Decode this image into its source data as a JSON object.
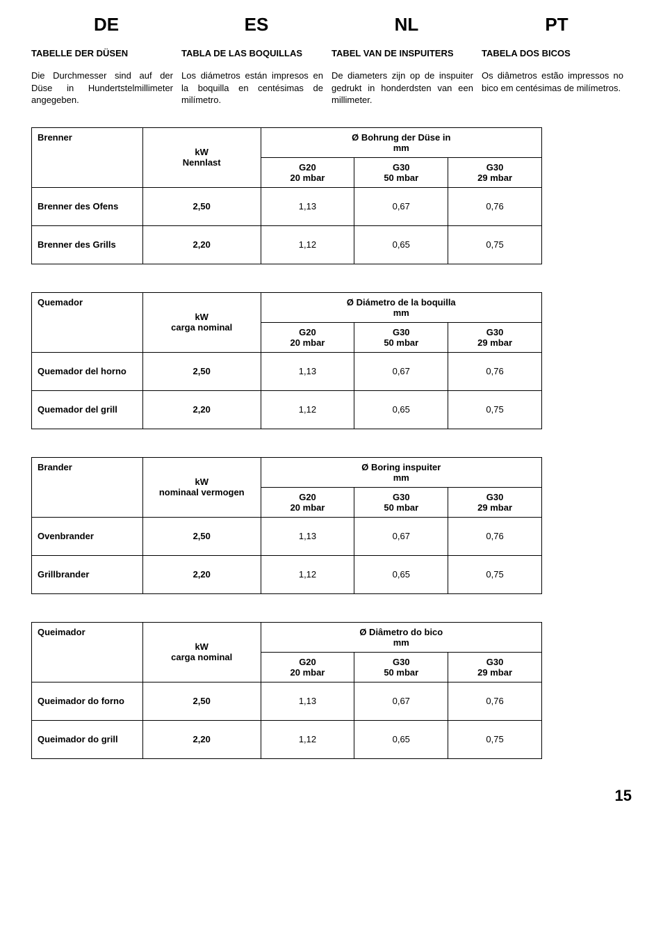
{
  "langs": {
    "de": "DE",
    "es": "ES",
    "nl": "NL",
    "pt": "PT"
  },
  "section_titles": {
    "de": "TABELLE DER DÜSEN",
    "es": "TABLA DE LAS BOQUILLAS",
    "nl": "TABEL VAN DE INSPUITERS",
    "pt": "TABELA DOS BICOS"
  },
  "descriptions": {
    "de": "Die Durchmesser sind auf der Düse in Hundertstelmillimeter angegeben.",
    "es": "Los diámetros están impresos en la boquilla en centésimas de milímetro.",
    "nl": "De diameters zijn op de inspuiter gedrukt in honderdsten van een millimeter.",
    "pt": "Os diâmetros estão impressos no bico em centésimas de milímetros."
  },
  "gas_headers": {
    "g20_top": "G20",
    "g20_bot": "20 mbar",
    "g30a_top": "G30",
    "g30a_bot": "50 mbar",
    "g30b_top": "G30",
    "g30b_bot": "29 mbar"
  },
  "tables": [
    {
      "col1": "Brenner",
      "kw_top": "kW",
      "kw_bot": "Nennlast",
      "diam_top": "Ø Bohrung der Düse in",
      "diam_bot": "mm",
      "rows": [
        {
          "label": "Brenner des Ofens",
          "kw": "2,50",
          "g20": "1,13",
          "g30a": "0,67",
          "g30b": "0,76"
        },
        {
          "label": "Brenner des Grills",
          "kw": "2,20",
          "g20": "1,12",
          "g30a": "0,65",
          "g30b": "0,75"
        }
      ]
    },
    {
      "col1": "Quemador",
      "kw_top": "kW",
      "kw_bot": "carga nominal",
      "diam_top": "Ø Diámetro de la boquilla",
      "diam_bot": "mm",
      "rows": [
        {
          "label": "Quemador del horno",
          "kw": "2,50",
          "g20": "1,13",
          "g30a": "0,67",
          "g30b": "0,76"
        },
        {
          "label": "Quemador del grill",
          "kw": "2,20",
          "g20": "1,12",
          "g30a": "0,65",
          "g30b": "0,75"
        }
      ]
    },
    {
      "col1": "Brander",
      "kw_top": "kW",
      "kw_bot": "nominaal vermogen",
      "diam_top": "Ø Boring inspuiter",
      "diam_bot": "mm",
      "rows": [
        {
          "label": "Ovenbrander",
          "kw": "2,50",
          "g20": "1,13",
          "g30a": "0,67",
          "g30b": "0,76"
        },
        {
          "label": "Grillbrander",
          "kw": "2,20",
          "g20": "1,12",
          "g30a": "0,65",
          "g30b": "0,75"
        }
      ]
    },
    {
      "col1": "Queimador",
      "kw_top": "kW",
      "kw_bot": "carga nominal",
      "diam_top": "Ø Diâmetro do bico",
      "diam_bot": "mm",
      "rows": [
        {
          "label": "Queimador do forno",
          "kw": "2,50",
          "g20": "1,13",
          "g30a": "0,67",
          "g30b": "0,76"
        },
        {
          "label": "Queimador do grill",
          "kw": "2,20",
          "g20": "1,12",
          "g30a": "0,65",
          "g30b": "0,75"
        }
      ]
    }
  ],
  "page_number": "15"
}
